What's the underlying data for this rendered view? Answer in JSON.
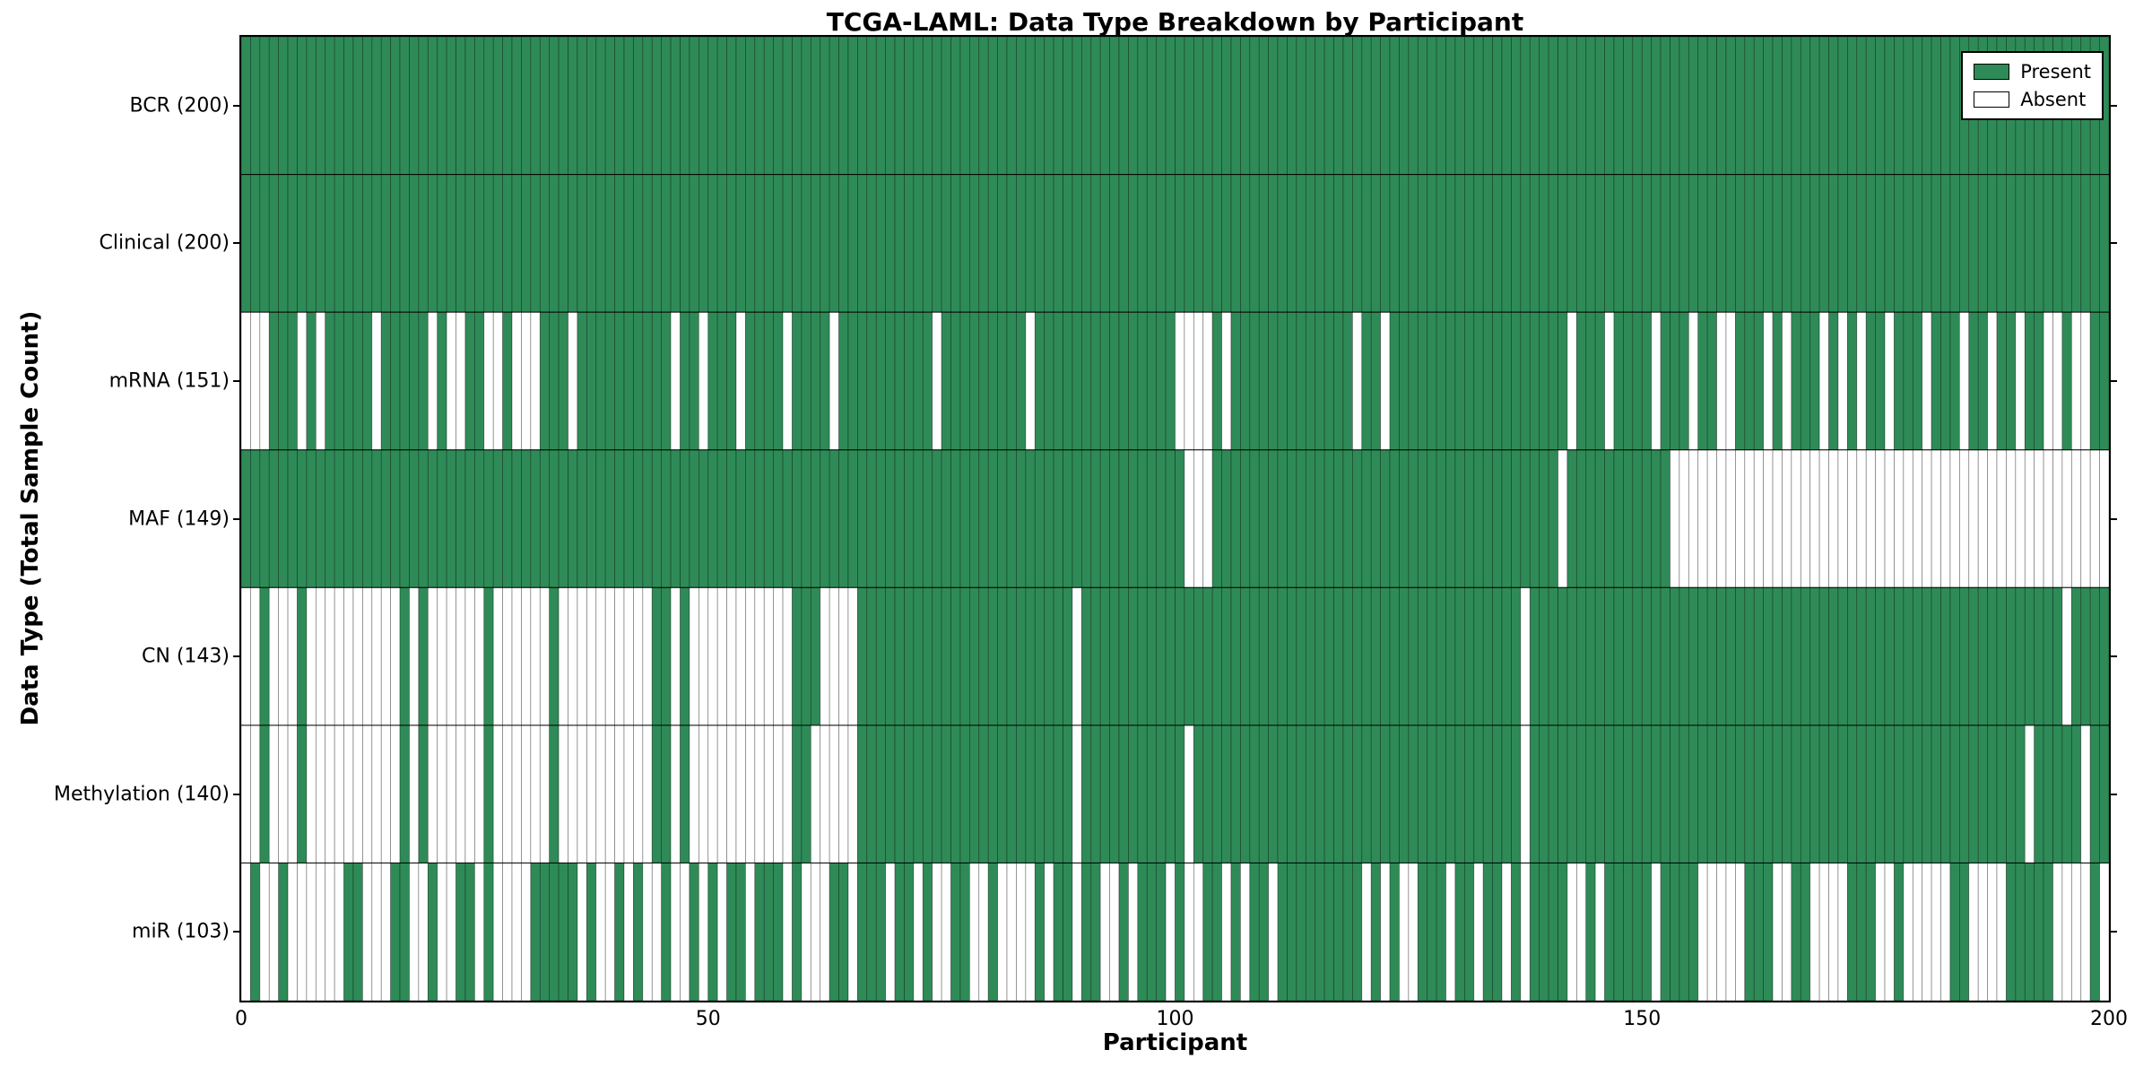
{
  "chart_data": {
    "type": "heatmap",
    "title": "TCGA-LAML: Data Type Breakdown by Participant",
    "xlabel": "Participant",
    "ylabel": "Data Type (Total Sample Count)",
    "n_participants": 200,
    "x_range": [
      0,
      200
    ],
    "x_ticks": [
      0,
      50,
      100,
      150,
      200
    ],
    "grid": "row-separators-only",
    "legend_position": "upper-right-inside",
    "colors": {
      "present": "#2E8B57",
      "absent": "#FFFFFF",
      "cell_border": "rgba(0,0,0,0.45)",
      "separator": "#000000"
    },
    "legend": [
      {
        "label": "Present",
        "color": "#2E8B57"
      },
      {
        "label": "Absent",
        "color": "#FFFFFF"
      }
    ],
    "rows": [
      {
        "label": "BCR",
        "total": 200,
        "axis_label": "BCR (200)",
        "pattern": "11111111111111111111111111111111111111111111111111111111111111111111111111111111111111111111111111111111111111111111111111111111111111111111111111111111111111111111111111111111111111111111111111111111"
      },
      {
        "label": "Clinical",
        "total": 200,
        "axis_label": "Clinical (200)",
        "pattern": "11111111111111111111111111111111111111111111111111111111111111111111111111111111111111111111111111111111111111111111111111111111111111111111111111111111111111111111111111111111111111111111111111111111"
      },
      {
        "label": "mRNA",
        "total": 151,
        "axis_label": "mRNA (151)",
        "pattern": "0001110101111101111101001100100011101111111111011011101111011110111111111101111111110111111111111111000010111111111111101101111111111111111111011101111011101100111010111010101101110111011011011001 0011"
      },
      {
        "label": "MAF",
        "total": 149,
        "axis_label": "MAF (149)",
        "pattern": "1111111111111111111111111111111111111111111111111111111111111111111111111111111111111111111111111111100011111111111111111111111111111111111110111111111110000000000000000000000000000000000000000000000 0"
      },
      {
        "label": "CN",
        "total": 143,
        "axis_label": "CN (143)",
        "pattern": "0010001000000000010100000010000001000000000011010000000000011100001111111111111111111111101111111111111111111111111111111111111111111111101111111111111111111111111111111111111111111111111111111110 11111111"
      },
      {
        "label": "Methylation",
        "total": 140,
        "axis_label": "Methylation (140)",
        "pattern": "0010001000000000010100000010000001000000000011010000000000011000001111111111111111111111101111111111101111111111111111111111111111111111101111111111111111111111111111111111111111111111111111101111 1011111111"
      },
      {
        "label": "miR",
        "total": 103,
        "axis_label": "miR (103)",
        "pattern": "0100100000011000110010011010000111110100101001001010110111010001101110110100110010000101101100101110100110101101111111110101001110110110101111001011111011110000011100110000111001000001100001111100 0010"
      }
    ]
  }
}
